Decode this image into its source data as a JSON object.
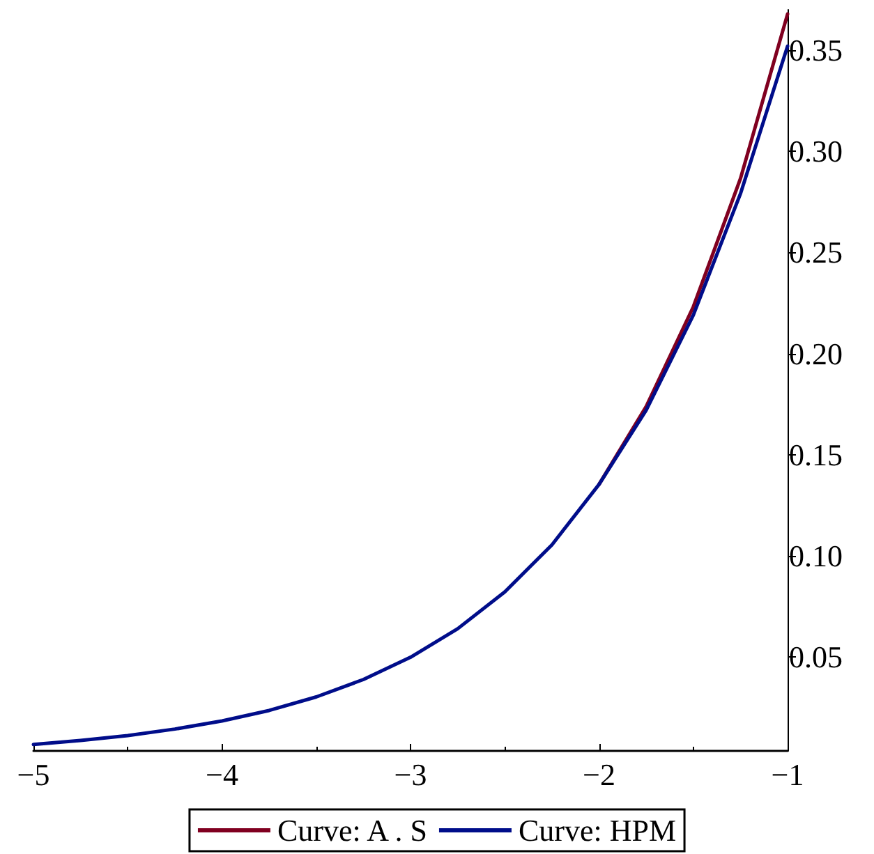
{
  "chart_data": {
    "type": "line",
    "x": [
      -5,
      -4.75,
      -4.5,
      -4.25,
      -4,
      -3.75,
      -3.5,
      -3.25,
      -3,
      -2.75,
      -2.5,
      -2.25,
      -2,
      -1.75,
      -1.5,
      -1.25,
      -1
    ],
    "series": [
      {
        "name": "Curve: A . S",
        "color": "#800020",
        "values": [
          null,
          null,
          null,
          null,
          null,
          null,
          null,
          null,
          null,
          null,
          null,
          null,
          0.1353,
          0.1738,
          0.2231,
          0.2865,
          0.3679
        ]
      },
      {
        "name": "Curve: HPM",
        "color": "#000d8a",
        "values": [
          0.0067,
          0.0087,
          0.0111,
          0.0143,
          0.0183,
          0.0235,
          0.0302,
          0.0388,
          0.0498,
          0.0639,
          0.0821,
          0.1054,
          0.1353,
          0.172,
          0.219,
          0.279,
          0.352
        ]
      }
    ],
    "xlim": [
      -5,
      -1
    ],
    "xticks": [
      {
        "value": -5,
        "label": "−5"
      },
      {
        "value": -4,
        "label": "−4"
      },
      {
        "value": -3,
        "label": "−3"
      },
      {
        "value": -2,
        "label": "−2"
      },
      {
        "value": -1,
        "label": "−1"
      }
    ],
    "ylim": [
      0.0035,
      0.37
    ],
    "yticks": [
      {
        "value": 0.05,
        "label": "0.05"
      },
      {
        "value": 0.1,
        "label": "0.10"
      },
      {
        "value": 0.15,
        "label": "0.15"
      },
      {
        "value": 0.2,
        "label": "0.20"
      },
      {
        "value": 0.25,
        "label": "0.25"
      },
      {
        "value": 0.3,
        "label": "0.30"
      },
      {
        "value": 0.35,
        "label": "0.35"
      }
    ],
    "grid": false,
    "legend": "bottom",
    "marker": "none",
    "line_style": "solid"
  }
}
